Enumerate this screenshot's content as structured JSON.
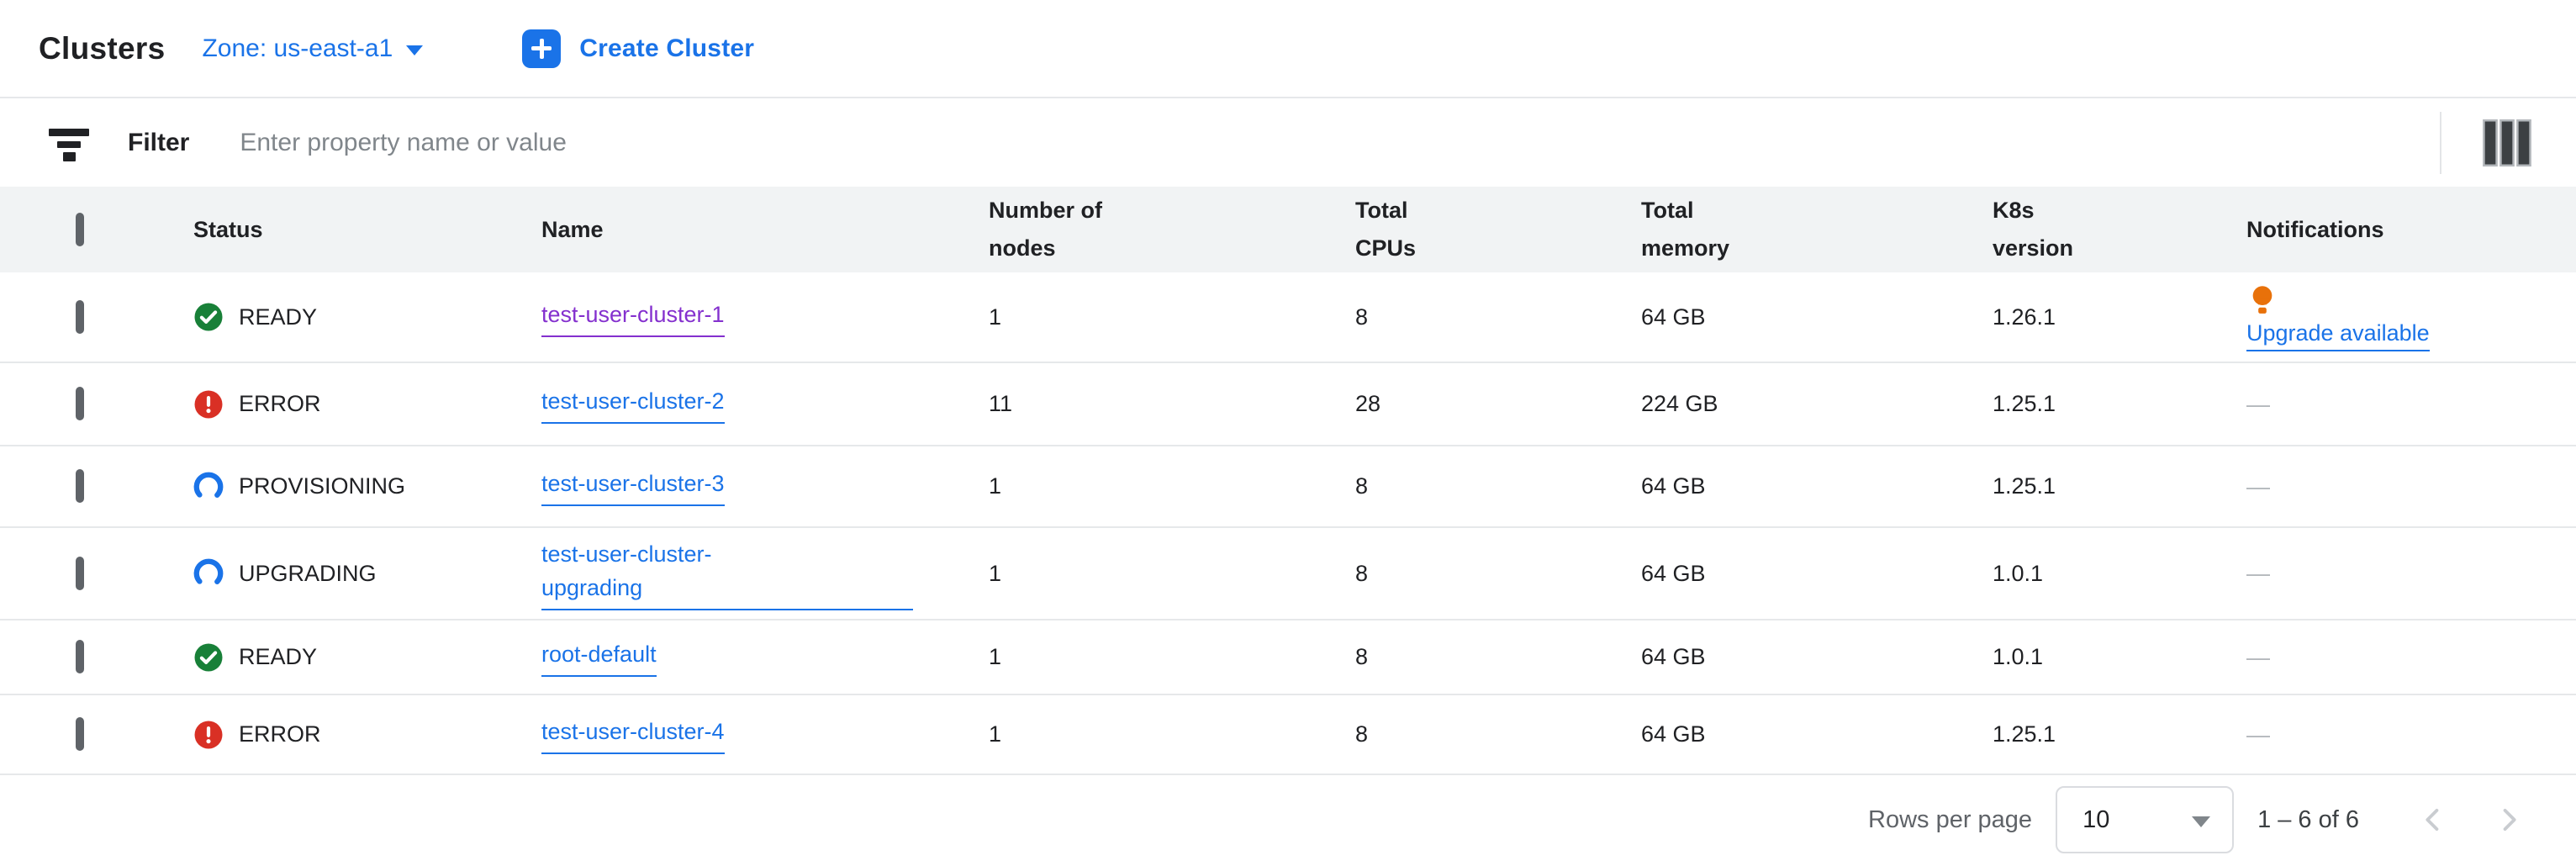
{
  "header": {
    "title": "Clusters",
    "zone": {
      "label": "Zone: us-east-a1",
      "icon": "dropdown-caret-icon"
    },
    "create_button": {
      "label": "Create Cluster",
      "icon": "plus-icon"
    }
  },
  "filter_bar": {
    "icon": "filter-icon",
    "label": "Filter",
    "placeholder": "Enter property name or value",
    "column_display_icon": "column-display-icon"
  },
  "table": {
    "columns": [
      "Status",
      "Name",
      "Number of\nnodes",
      "Total\nCPUs",
      "Total\nmemory",
      "K8s\nversion",
      "Notifications"
    ],
    "rows": [
      {
        "status": "READY",
        "status_icon": "check-circle-icon",
        "name": "test-user-cluster-1",
        "name_visited": true,
        "nodes": "1",
        "cpus": "8",
        "memory": "64 GB",
        "k8s_version": "1.26.1",
        "notification": {
          "type": "upgrade",
          "icon": "lightbulb-icon",
          "label": "Upgrade available"
        }
      },
      {
        "status": "ERROR",
        "status_icon": "error-circle-icon",
        "name": "test-user-cluster-2",
        "name_visited": false,
        "nodes": "11",
        "cpus": "28",
        "memory": "224 GB",
        "k8s_version": "1.25.1",
        "notification": {
          "type": "none",
          "label": "—"
        }
      },
      {
        "status": "PROVISIONING",
        "status_icon": "spinner-icon",
        "name": "test-user-cluster-3",
        "name_visited": false,
        "nodes": "1",
        "cpus": "8",
        "memory": "64 GB",
        "k8s_version": "1.25.1",
        "notification": {
          "type": "none",
          "label": "—"
        }
      },
      {
        "status": "UPGRADING",
        "status_icon": "spinner-icon",
        "name": "test-user-cluster-\nupgrading",
        "name_visited": false,
        "nodes": "1",
        "cpus": "8",
        "memory": "64 GB",
        "k8s_version": "1.0.1",
        "notification": {
          "type": "none",
          "label": "—"
        }
      },
      {
        "status": "READY",
        "status_icon": "check-circle-icon",
        "name": "root-default",
        "name_visited": false,
        "nodes": "1",
        "cpus": "8",
        "memory": "64 GB",
        "k8s_version": "1.0.1",
        "notification": {
          "type": "none",
          "label": "—"
        }
      },
      {
        "status": "ERROR",
        "status_icon": "error-circle-icon",
        "name": "test-user-cluster-4",
        "name_visited": false,
        "nodes": "1",
        "cpus": "8",
        "memory": "64 GB",
        "k8s_version": "1.25.1",
        "notification": {
          "type": "none",
          "label": "—"
        }
      }
    ]
  },
  "pagination": {
    "rows_per_page_label": "Rows per page",
    "rows_per_page_value": "10",
    "range": "1 – 6 of 6",
    "prev_icon": "chevron-left-icon",
    "next_icon": "chevron-right-icon"
  },
  "colors": {
    "accent_blue": "#1a73e8",
    "visited_purple": "#8430ce",
    "status_green": "#188038",
    "status_red": "#d93025",
    "bulb_orange": "#e8710a",
    "header_bg": "#f1f3f4",
    "text_primary": "#202124",
    "placeholder_gray": "#80868b",
    "dash_gray": "#b4b8bc",
    "disabled_chevron": "#c9ccd0"
  }
}
